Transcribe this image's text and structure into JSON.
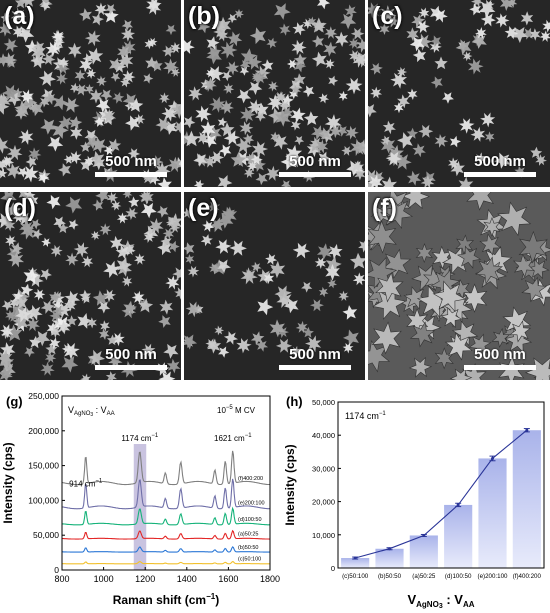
{
  "figure": {
    "panels": [
      {
        "label": "(a)",
        "scale": "500 nm",
        "texture": "dense-flowers"
      },
      {
        "label": "(b)",
        "scale": "500 nm",
        "texture": "dense-flowers"
      },
      {
        "label": "(c)",
        "scale": "500 nm",
        "texture": "sparse-flowers"
      },
      {
        "label": "(d)",
        "scale": "500 nm",
        "texture": "dense-flowers"
      },
      {
        "label": "(e)",
        "scale": "500 nm",
        "texture": "sparse-flowers"
      },
      {
        "label": "(f)",
        "scale": "500 nm",
        "texture": "packed-particles"
      }
    ]
  },
  "chart_data": [
    {
      "type": "line",
      "panel_label": "(g)",
      "legend_title": "V",
      "legend_title_sub1": "AgNO",
      "legend_title_sub2": "3",
      "legend_title_sep": " : V",
      "legend_title_sub3": "AA",
      "concentration": "10",
      "concentration_exp": "−5",
      "concentration_unit": " M CV",
      "xlabel": "Raman shift (cm",
      "xlabel_exp": "−1",
      "xlabel_close": ")",
      "ylabel": "Intensity (cps)",
      "xlim": [
        800,
        1800
      ],
      "ylim": [
        0,
        250000
      ],
      "xticks": [
        "800",
        "1000",
        "1200",
        "1400",
        "1600",
        "1800"
      ],
      "yticks": [
        "0",
        "50,000",
        "100,000",
        "150,000",
        "200,000",
        "250,000"
      ],
      "highlight_band": [
        1145,
        1205
      ],
      "highlight_color": "#c9c3e0",
      "peak_labels": [
        {
          "text": "914 cm",
          "exp": "−1",
          "x": 914,
          "y": 120000
        },
        {
          "text": "1174 cm",
          "exp": "−1",
          "x": 1174,
          "y": 185000
        },
        {
          "text": "1621 cm",
          "exp": "−1",
          "x": 1621,
          "y": 185000
        }
      ],
      "peaks": [
        {
          "x": 914,
          "w": 7,
          "a": 0.9
        },
        {
          "x": 1174,
          "w": 10,
          "a": 1.0
        },
        {
          "x": 1297,
          "w": 8,
          "a": 0.35
        },
        {
          "x": 1371,
          "w": 9,
          "a": 0.7
        },
        {
          "x": 1535,
          "w": 8,
          "a": 0.45
        },
        {
          "x": 1585,
          "w": 8,
          "a": 0.75
        },
        {
          "x": 1621,
          "w": 8,
          "a": 1.05
        }
      ],
      "series": [
        {
          "name": "(f)400:200",
          "color": "#808080",
          "baseline": 125000,
          "scale": 45000
        },
        {
          "name": "(e)200:100",
          "color": "#6f6fa8",
          "baseline": 90000,
          "scale": 40000
        },
        {
          "name": "(d)100:50",
          "color": "#16b37a",
          "baseline": 66000,
          "scale": 22000
        },
        {
          "name": "(a)50:25",
          "color": "#e32626",
          "baseline": 45000,
          "scale": 11000
        },
        {
          "name": "(b)50:50",
          "color": "#2b77d6",
          "baseline": 26000,
          "scale": 7000
        },
        {
          "name": "(c)50:100",
          "color": "#f2c12e",
          "baseline": 9000,
          "scale": 3000
        }
      ]
    },
    {
      "type": "bar",
      "panel_label": "(h)",
      "annotation": "1174 cm",
      "annotation_exp": "−1",
      "xlabel": "V",
      "xlabel_sub1": "AgNO",
      "xlabel_sub2": "3",
      "xlabel_sep": " : V",
      "xlabel_sub3": "AA",
      "ylabel": "Intensity (cps)",
      "ylim": [
        0,
        50000
      ],
      "yticks": [
        "0",
        "10,000",
        "20,000",
        "30,000",
        "40,000",
        "50,000"
      ],
      "categories": [
        "(c)50:100",
        "(b)50:50",
        "(a)50:25",
        "(d)100:50",
        "(e)200:100",
        "(f)400:200"
      ],
      "values": [
        3000,
        5800,
        9800,
        19000,
        33000,
        41500
      ],
      "errors": [
        300,
        300,
        300,
        500,
        700,
        500
      ],
      "bar_color_top": "#a9b3ea",
      "bar_color_bottom": "#e8ebfb",
      "line_color": "#2a3598"
    }
  ]
}
